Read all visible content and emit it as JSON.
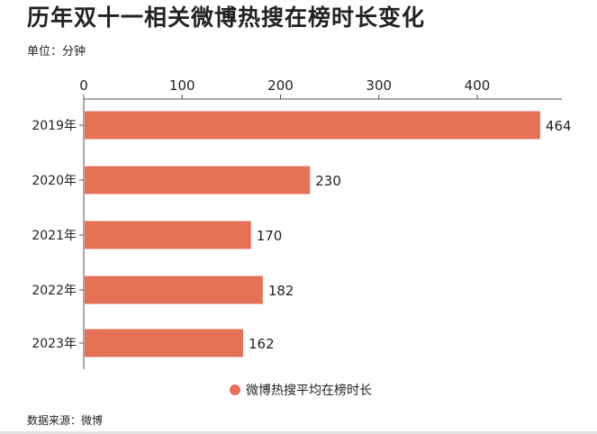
{
  "title": "历年双十一相关微博热搜在榜时长变化",
  "unit_label": "单位：分钟",
  "source": "数据来源：微博",
  "colors": {
    "bar": "#e67256",
    "axis": "#555555",
    "text": "#222222"
  },
  "chart_data": {
    "type": "bar",
    "orientation": "horizontal",
    "categories": [
      "2019年",
      "2020年",
      "2021年",
      "2022年",
      "2023年"
    ],
    "series": [
      {
        "name": "微博热搜平均在榜时长",
        "values": [
          464,
          230,
          170,
          182,
          162
        ]
      }
    ],
    "xlim": [
      0,
      480
    ],
    "x_ticks": [
      0,
      100,
      200,
      300,
      400
    ],
    "x_tick_labels": [
      "0",
      "100",
      "200",
      "300",
      "400"
    ],
    "data_labels": [
      "464",
      "230",
      "170",
      "182",
      "162"
    ],
    "legend_position": "bottom-center",
    "grid": false
  }
}
